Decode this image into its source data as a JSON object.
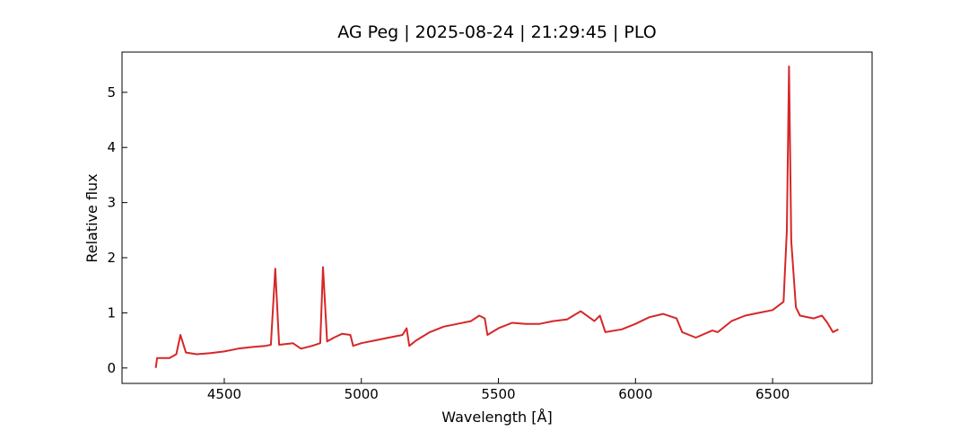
{
  "chart_data": {
    "type": "line",
    "title": "AG Peg | 2025-08-24 | 21:29:45 | PLO",
    "xlabel": "Wavelength [Å]",
    "ylabel": "Relative flux",
    "x": [
      4250,
      4255,
      4300,
      4325,
      4340,
      4360,
      4400,
      4450,
      4500,
      4550,
      4600,
      4650,
      4670,
      4686,
      4700,
      4750,
      4780,
      4820,
      4850,
      4860,
      4875,
      4900,
      4930,
      4960,
      4970,
      5000,
      5050,
      5100,
      5150,
      5165,
      5175,
      5200,
      5250,
      5300,
      5350,
      5400,
      5430,
      5450,
      5460,
      5500,
      5550,
      5600,
      5650,
      5700,
      5750,
      5800,
      5850,
      5870,
      5890,
      5950,
      6000,
      6050,
      6100,
      6150,
      6170,
      6220,
      6280,
      6300,
      6350,
      6400,
      6450,
      6500,
      6540,
      6552,
      6560,
      6568,
      6585,
      6600,
      6650,
      6680,
      6700,
      6720,
      6740
    ],
    "series": [
      {
        "name": "AG Peg",
        "color": "#d62728",
        "values": [
          0.0,
          0.18,
          0.18,
          0.25,
          0.6,
          0.28,
          0.25,
          0.27,
          0.3,
          0.35,
          0.38,
          0.4,
          0.42,
          1.8,
          0.42,
          0.45,
          0.35,
          0.4,
          0.45,
          1.83,
          0.48,
          0.55,
          0.62,
          0.6,
          0.4,
          0.45,
          0.5,
          0.55,
          0.6,
          0.72,
          0.4,
          0.5,
          0.65,
          0.75,
          0.8,
          0.85,
          0.95,
          0.9,
          0.6,
          0.72,
          0.82,
          0.8,
          0.8,
          0.85,
          0.88,
          1.03,
          0.85,
          0.95,
          0.65,
          0.7,
          0.8,
          0.92,
          0.98,
          0.9,
          0.65,
          0.55,
          0.68,
          0.65,
          0.85,
          0.95,
          1.0,
          1.05,
          1.2,
          2.5,
          5.47,
          2.3,
          1.1,
          0.95,
          0.9,
          0.95,
          0.82,
          0.65,
          0.7
        ]
      }
    ],
    "xlim": [
      4127,
      6863
    ],
    "ylim": [
      -0.28,
      5.73
    ],
    "xticks": [
      4500,
      5000,
      5500,
      6000,
      6500
    ],
    "yticks": [
      0,
      1,
      2,
      3,
      4,
      5
    ],
    "grid": false
  }
}
